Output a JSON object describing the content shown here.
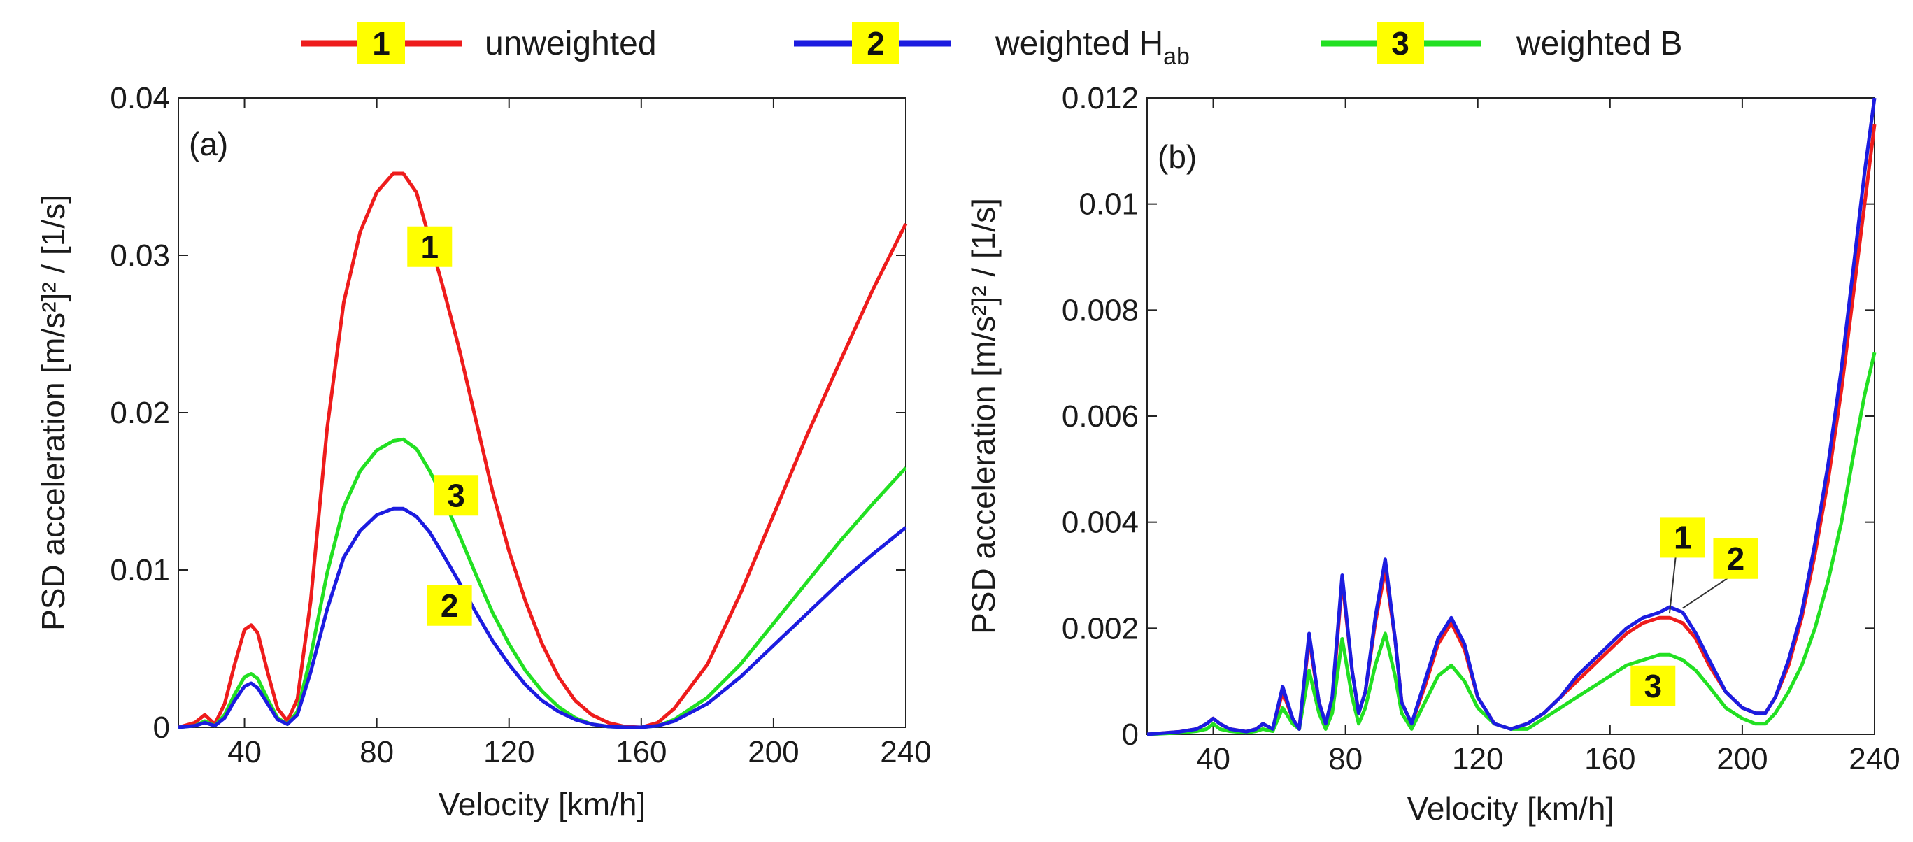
{
  "legend": [
    {
      "num": "1",
      "label": "unweighted",
      "sub": "",
      "color": "#ee1c1c"
    },
    {
      "num": "2",
      "label": "weighted H",
      "sub": "ab",
      "color": "#1c1ce0"
    },
    {
      "num": "3",
      "label": "weighted B",
      "sub": "",
      "color": "#22e022"
    }
  ],
  "colors": {
    "badge": "#ffff00"
  },
  "chart_data": [
    {
      "type": "line",
      "panel_label": "(a)",
      "xlabel": "Velocity [km/h]",
      "ylabel": "PSD acceleration [m/s²]² / [1/s]",
      "xlim": [
        20,
        240
      ],
      "ylim": [
        0,
        0.04
      ],
      "xticks": [
        40,
        80,
        120,
        160,
        200,
        240
      ],
      "xtick_labels": [
        "40",
        "80",
        "120",
        "160",
        "200",
        "240"
      ],
      "yticks": [
        0,
        0.01,
        0.02,
        0.03,
        0.04
      ],
      "ytick_labels": [
        "0",
        "0.01",
        "0.02",
        "0.03",
        "0.04"
      ],
      "series": [
        {
          "name": "unweighted",
          "num": "1",
          "x": [
            20,
            25,
            28,
            31,
            34,
            37,
            40,
            42,
            44,
            47,
            50,
            53,
            56,
            60,
            65,
            70,
            75,
            80,
            85,
            88,
            92,
            96,
            100,
            105,
            110,
            115,
            120,
            125,
            130,
            135,
            140,
            145,
            150,
            155,
            160,
            165,
            170,
            180,
            190,
            200,
            210,
            220,
            230,
            240
          ],
          "values": [
            0,
            0.0003,
            0.0008,
            0.0002,
            0.0015,
            0.004,
            0.0062,
            0.0065,
            0.006,
            0.0035,
            0.0012,
            0.0004,
            0.0018,
            0.008,
            0.019,
            0.027,
            0.0315,
            0.034,
            0.0352,
            0.0352,
            0.034,
            0.031,
            0.028,
            0.024,
            0.0195,
            0.015,
            0.0112,
            0.008,
            0.0053,
            0.0032,
            0.0017,
            0.0008,
            0.0003,
            5e-05,
            0,
            0.0003,
            0.0012,
            0.004,
            0.0085,
            0.0135,
            0.0185,
            0.0232,
            0.0278,
            0.032
          ],
          "callout": {
            "x": 96,
            "y": 0.0305
          }
        },
        {
          "name": "weighted H_ab",
          "num": "2",
          "x": [
            20,
            25,
            28,
            31,
            34,
            37,
            40,
            42,
            44,
            47,
            50,
            53,
            56,
            60,
            65,
            70,
            75,
            80,
            85,
            88,
            92,
            96,
            100,
            105,
            110,
            115,
            120,
            125,
            130,
            135,
            140,
            145,
            150,
            155,
            160,
            165,
            170,
            180,
            190,
            200,
            210,
            220,
            230,
            240
          ],
          "values": [
            0,
            0.0001,
            0.0003,
            0.0001,
            0.0006,
            0.0017,
            0.0026,
            0.0028,
            0.0025,
            0.0015,
            0.0005,
            0.0002,
            0.0008,
            0.0035,
            0.0075,
            0.0108,
            0.0125,
            0.0135,
            0.0139,
            0.0139,
            0.0134,
            0.0124,
            0.011,
            0.0092,
            0.0073,
            0.0055,
            0.004,
            0.0027,
            0.0017,
            0.001,
            0.0005,
            0.0002,
            5e-05,
            0,
            0,
            0.0001,
            0.0004,
            0.0015,
            0.0032,
            0.0052,
            0.0072,
            0.0092,
            0.011,
            0.0127
          ],
          "callout": {
            "x": 102,
            "y": 0.0077
          }
        },
        {
          "name": "weighted B",
          "num": "3",
          "x": [
            20,
            25,
            28,
            31,
            34,
            37,
            40,
            42,
            44,
            47,
            50,
            53,
            56,
            60,
            65,
            70,
            75,
            80,
            85,
            88,
            92,
            96,
            100,
            105,
            110,
            115,
            120,
            125,
            130,
            135,
            140,
            145,
            150,
            155,
            160,
            165,
            170,
            180,
            190,
            200,
            210,
            220,
            230,
            240
          ],
          "values": [
            0,
            0.0001,
            0.0004,
            0.0001,
            0.0008,
            0.0021,
            0.0032,
            0.0034,
            0.0031,
            0.0018,
            0.0006,
            0.0002,
            0.001,
            0.0045,
            0.0098,
            0.014,
            0.0163,
            0.0176,
            0.0182,
            0.0183,
            0.0177,
            0.0163,
            0.0146,
            0.0122,
            0.0097,
            0.0073,
            0.0053,
            0.0036,
            0.0023,
            0.0013,
            0.0006,
            0.0002,
            5e-05,
            0,
            0,
            0.0001,
            0.0005,
            0.0019,
            0.004,
            0.0066,
            0.0092,
            0.0118,
            0.0142,
            0.0165
          ],
          "callout": {
            "x": 104,
            "y": 0.0147
          }
        }
      ]
    },
    {
      "type": "line",
      "panel_label": "(b)",
      "xlabel": "Velocity [km/h]",
      "ylabel": "PSD acceleration [m/s²]² / [1/s]",
      "xlim": [
        20,
        240
      ],
      "ylim": [
        0,
        0.012
      ],
      "xticks": [
        40,
        80,
        120,
        160,
        200,
        240
      ],
      "xtick_labels": [
        "40",
        "80",
        "120",
        "160",
        "200",
        "240"
      ],
      "yticks": [
        0,
        0.002,
        0.004,
        0.006,
        0.008,
        0.01,
        0.012
      ],
      "ytick_labels": [
        "0",
        "0.002",
        "0.004",
        "0.006",
        "0.008",
        "0.01",
        "0.012"
      ],
      "series": [
        {
          "name": "unweighted",
          "num": "1",
          "x": [
            20,
            30,
            35,
            38,
            40,
            42,
            45,
            50,
            53,
            55,
            58,
            61,
            64,
            66,
            69,
            72,
            74,
            76,
            79,
            82,
            84,
            86,
            89,
            92,
            95,
            97,
            100,
            104,
            108,
            112,
            116,
            120,
            125,
            130,
            135,
            140,
            145,
            150,
            155,
            160,
            165,
            170,
            175,
            178,
            182,
            186,
            190,
            195,
            200,
            204,
            207,
            210,
            214,
            218,
            222,
            226,
            230,
            234,
            237,
            240
          ],
          "values": [
            0,
            5e-05,
            0.0001,
            0.0002,
            0.0003,
            0.0002,
            0.0001,
            5e-05,
            0.0001,
            0.0002,
            0.0001,
            0.0008,
            0.0003,
            0.0001,
            0.0018,
            0.0006,
            0.0002,
            0.0006,
            0.0029,
            0.0012,
            0.0004,
            0.0008,
            0.0021,
            0.0031,
            0.0018,
            0.0006,
            0.0002,
            0.0009,
            0.0017,
            0.0021,
            0.0016,
            0.0007,
            0.0002,
            0.0001,
            0.0002,
            0.0004,
            0.0007,
            0.001,
            0.0013,
            0.0016,
            0.0019,
            0.0021,
            0.0022,
            0.0022,
            0.0021,
            0.0018,
            0.0013,
            0.0008,
            0.0005,
            0.0004,
            0.0004,
            0.0007,
            0.0013,
            0.0022,
            0.0034,
            0.0048,
            0.0065,
            0.0085,
            0.01,
            0.0115
          ],
          "callout": {
            "x": 182,
            "y": 0.0037
          }
        },
        {
          "name": "weighted H_ab",
          "num": "2",
          "x": [
            20,
            30,
            35,
            38,
            40,
            42,
            45,
            50,
            53,
            55,
            58,
            61,
            64,
            66,
            69,
            72,
            74,
            76,
            79,
            82,
            84,
            86,
            89,
            92,
            95,
            97,
            100,
            104,
            108,
            112,
            116,
            120,
            125,
            130,
            135,
            140,
            145,
            150,
            155,
            160,
            165,
            170,
            175,
            178,
            182,
            186,
            190,
            195,
            200,
            204,
            207,
            210,
            214,
            218,
            222,
            226,
            230,
            234,
            237,
            240
          ],
          "values": [
            0,
            5e-05,
            0.0001,
            0.0002,
            0.0003,
            0.0002,
            0.0001,
            5e-05,
            0.0001,
            0.0002,
            0.0001,
            0.0009,
            0.0003,
            0.0001,
            0.0019,
            0.0006,
            0.0002,
            0.0007,
            0.003,
            0.0012,
            0.0004,
            0.0008,
            0.0022,
            0.0033,
            0.0018,
            0.0006,
            0.0002,
            0.001,
            0.0018,
            0.0022,
            0.0017,
            0.0007,
            0.0002,
            0.0001,
            0.0002,
            0.0004,
            0.0007,
            0.0011,
            0.0014,
            0.0017,
            0.002,
            0.0022,
            0.0023,
            0.0024,
            0.0023,
            0.0019,
            0.0014,
            0.0008,
            0.0005,
            0.0004,
            0.0004,
            0.0007,
            0.0014,
            0.0023,
            0.0036,
            0.0051,
            0.0069,
            0.009,
            0.0106,
            0.0121
          ],
          "callout": {
            "x": 198,
            "y": 0.0033
          }
        },
        {
          "name": "weighted B",
          "num": "3",
          "x": [
            20,
            30,
            35,
            38,
            40,
            42,
            45,
            50,
            53,
            55,
            58,
            61,
            64,
            66,
            69,
            72,
            74,
            76,
            79,
            82,
            84,
            86,
            89,
            92,
            95,
            97,
            100,
            104,
            108,
            112,
            116,
            120,
            125,
            130,
            135,
            140,
            145,
            150,
            155,
            160,
            165,
            170,
            175,
            178,
            182,
            186,
            190,
            195,
            200,
            204,
            207,
            210,
            214,
            218,
            222,
            226,
            230,
            234,
            237,
            240
          ],
          "values": [
            0,
            3e-05,
            6e-05,
            0.0001,
            0.0002,
            0.0001,
            6e-05,
            3e-05,
            6e-05,
            0.0001,
            6e-05,
            0.0005,
            0.0002,
            0.0001,
            0.0012,
            0.0004,
            0.0001,
            0.0004,
            0.0018,
            0.0007,
            0.0002,
            0.0005,
            0.0013,
            0.0019,
            0.0011,
            0.0004,
            0.0001,
            0.0006,
            0.0011,
            0.0013,
            0.001,
            0.0005,
            0.0002,
            0.0001,
            0.0001,
            0.0003,
            0.0005,
            0.0007,
            0.0009,
            0.0011,
            0.0013,
            0.0014,
            0.0015,
            0.0015,
            0.0014,
            0.0012,
            0.0009,
            0.0005,
            0.0003,
            0.0002,
            0.0002,
            0.0004,
            0.0008,
            0.0013,
            0.002,
            0.0029,
            0.004,
            0.0054,
            0.0064,
            0.0072
          ],
          "callout": {
            "x": 173,
            "y": 0.0009
          }
        }
      ]
    }
  ]
}
